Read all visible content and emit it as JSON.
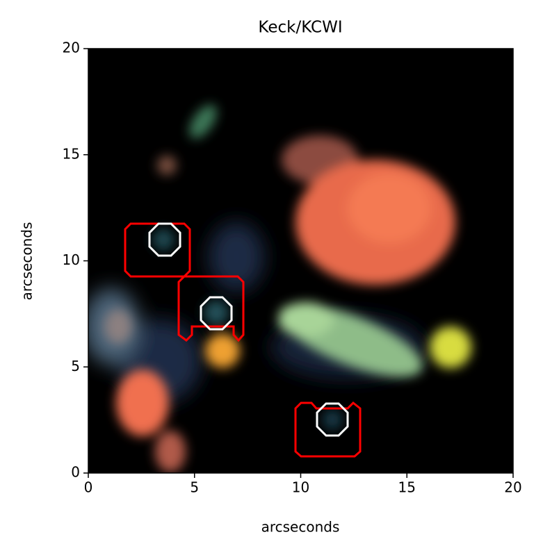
{
  "chart_data": {
    "type": "image",
    "title": "Keck/KCWI",
    "xlabel": "arcseconds",
    "ylabel": "arcseconds",
    "xlim": [
      0,
      20
    ],
    "ylim": [
      0,
      20
    ],
    "xticks": [
      0,
      5,
      10,
      15,
      20
    ],
    "yticks": [
      0,
      5,
      10,
      15,
      20
    ]
  }
}
